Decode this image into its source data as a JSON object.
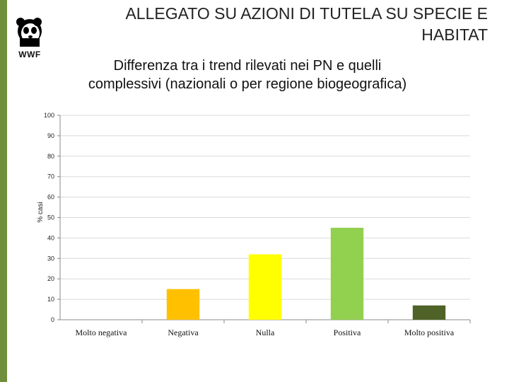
{
  "header": {
    "title": "ALLEGATO SU AZIONI DI TUTELA SU SPECIE E HABITAT",
    "logo_text": "WWF"
  },
  "colors": {
    "left_bar": "#6f8f3a",
    "gridline": "#d9d9d9",
    "axis": "#888888"
  },
  "chart_data": {
    "type": "bar",
    "title": "Differenza tra i trend rilevati nei PN e quelli complessivi (nazionali o per regione biogeografica)",
    "xlabel": "",
    "ylabel": "% casi",
    "ylim": [
      0,
      100
    ],
    "yticks": [
      0,
      10,
      20,
      30,
      40,
      50,
      60,
      70,
      80,
      90,
      100
    ],
    "categories": [
      "Molto negativa",
      "Negativa",
      "Nulla",
      "Positiva",
      "Molto positiva"
    ],
    "values": [
      0,
      15,
      32,
      45,
      7
    ],
    "bar_colors": [
      "#c00000",
      "#ffc000",
      "#ffff00",
      "#92d050",
      "#4f6228"
    ],
    "grid": true,
    "legend": "none"
  }
}
